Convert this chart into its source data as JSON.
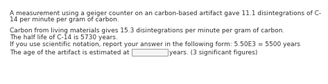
{
  "line1": "A measurement using a geiger counter on an carbon-based artifact gave 11.1 disintegrations of C-",
  "line2": "14 per minute per gram of carbon.",
  "line3": "Carbon from living materials gives 15.3 disintegrations per minute per gram of carbon.",
  "line4": "The half life of C-14 is 5730 years.",
  "line5": "If you use scientific notation, report your answer in the following form: 5.50E3 = 5500 years",
  "line6_pre": "The age of the artifact is estimated at",
  "line6_post": "years. (3 significant figures)",
  "bg_color": "#ffffff",
  "text_color": "#333333",
  "font_size": 6.5,
  "box_facecolor": "#f5f5f5",
  "box_edgecolor": "#999999"
}
